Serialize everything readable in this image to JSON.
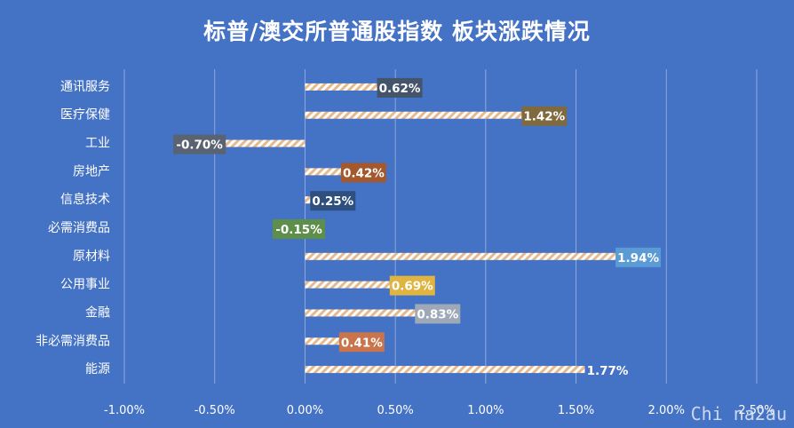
{
  "title": "标普/澳交所普通股指数 板块涨跌情况",
  "watermark": "Chi na2au",
  "chart_data": {
    "type": "bar",
    "orientation": "horizontal",
    "title": "标普/澳交所普通股指数 板块涨跌情况",
    "categories": [
      "通讯服务",
      "医疗保健",
      "工业",
      "房地产",
      "信息技术",
      "必需消费品",
      "原材料",
      "公用事业",
      "金融",
      "非必需消费品",
      "能源"
    ],
    "values": [
      0.62,
      1.42,
      -0.7,
      0.42,
      0.25,
      -0.15,
      1.94,
      0.69,
      0.83,
      0.41,
      1.77
    ],
    "labels": [
      "0.62%",
      "1.42%",
      "-0.70%",
      "0.42%",
      "0.25%",
      "-0.15%",
      "1.94%",
      "0.69%",
      "0.83%",
      "0.41%",
      "1.77%"
    ],
    "label_colors": [
      "#44546a",
      "#7f6a3f",
      "#5a6372",
      "#a3582e",
      "#2f4f7f",
      "#5d8e4a",
      "#5b9bd5",
      "#e0b440",
      "#9ea9b8",
      "#c9744a",
      "#4472c4"
    ],
    "xlim": [
      -1.0,
      2.5
    ],
    "xticks": [
      -1.0,
      -0.5,
      0.0,
      0.5,
      1.0,
      1.5,
      2.0,
      2.5
    ],
    "xtick_labels": [
      "-1.00%",
      "-0.50%",
      "0.00%",
      "0.50%",
      "1.00%",
      "1.50%",
      "2.00%",
      "2.50%"
    ],
    "grid": true,
    "bar_pattern": "diagonal-hatch",
    "colors": {
      "background": "#4472c4",
      "hatch_stripe": "#f2d9b3",
      "hatch_base": "#ffffff",
      "grid": "#8fa9dc"
    }
  }
}
